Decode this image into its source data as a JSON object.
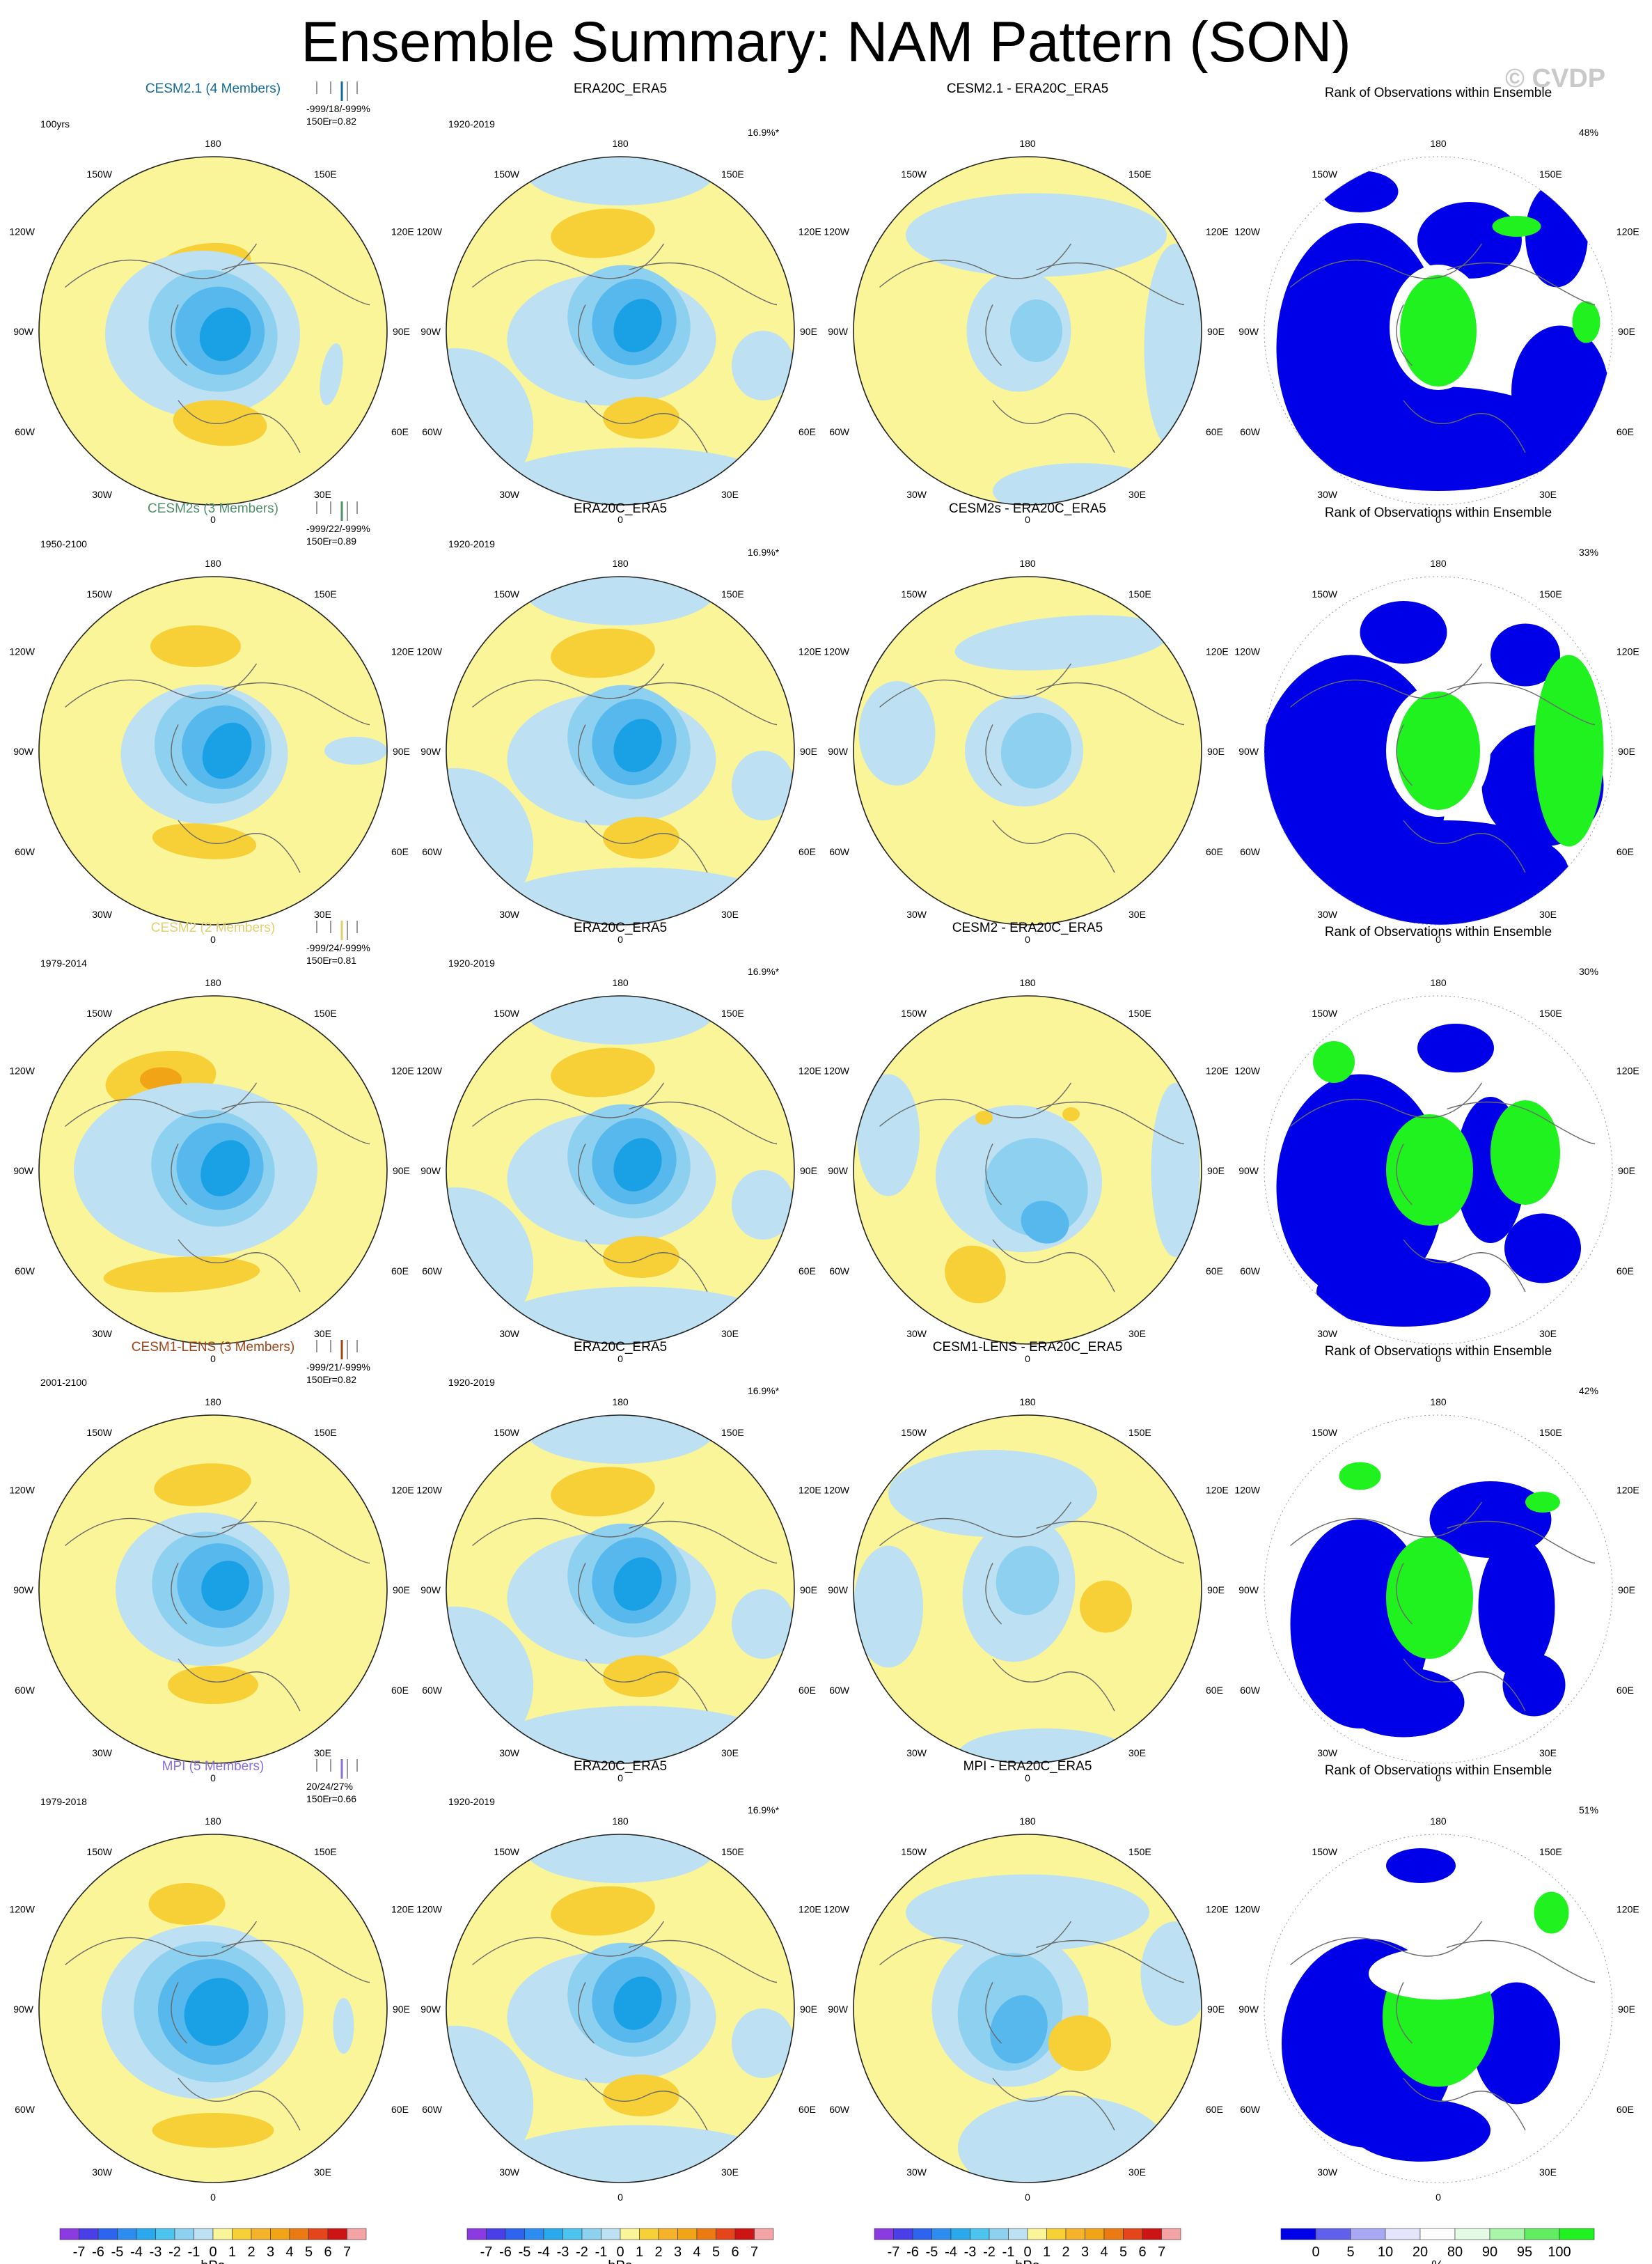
{
  "title": "Ensemble Summary: NAM Pattern (SON)",
  "watermark": "© CVDP",
  "column_labels": {
    "obs": "ERA20C_ERA5",
    "rank": "Rank of Observations within Ensemble"
  },
  "colors": {
    "pos1": "#fbf59a",
    "pos2": "#f7cf37",
    "pos3": "#f1a415",
    "neg1": "#bde0f2",
    "neg2": "#8ed0ef",
    "neg3": "#56b8ec",
    "neg4": "#1aa0e5",
    "rank_low": "#0000e8",
    "rank_high": "#1ff21f",
    "rank_mid": "#ffffff"
  },
  "lon_labels": [
    "180",
    "150W",
    "150E",
    "120W",
    "120E",
    "90W",
    "90E",
    "60W",
    "60E",
    "30W",
    "30E",
    "0"
  ],
  "rows": [
    {
      "model": "CESM2.1 (4 Members)",
      "model_color": "#136a96",
      "period": "100yrs",
      "stats": "-999/18/-999%",
      "stats2": "150E",
      "corr": "r=0.82",
      "diff_title": "CESM2.1 - ERA20C_ERA5",
      "obs_period": "1920-2019",
      "obs_pct": "16.9%*",
      "rank_pct": "48%"
    },
    {
      "model": "CESM2s (3 Members)",
      "model_color": "#4f8f6a",
      "period": "1950-2100",
      "stats": "-999/22/-999%",
      "stats2": "150E",
      "corr": "r=0.89",
      "diff_title": "CESM2s - ERA20C_ERA5",
      "obs_period": "1920-2019",
      "obs_pct": "16.9%*",
      "rank_pct": "33%"
    },
    {
      "model": "CESM2 (2 Members)",
      "model_color": "#e3cf6c",
      "period": "1979-2014",
      "stats": "-999/24/-999%",
      "stats2": "150E",
      "corr": "r=0.81",
      "diff_title": "CESM2 - ERA20C_ERA5",
      "obs_period": "1920-2019",
      "obs_pct": "16.9%*",
      "rank_pct": "30%"
    },
    {
      "model": "CESM1-LENS (3 Members)",
      "model_color": "#a04518",
      "period": "2001-2100",
      "stats": "-999/21/-999%",
      "stats2": "150E",
      "corr": "r=0.82",
      "diff_title": "CESM1-LENS - ERA20C_ERA5",
      "obs_period": "1920-2019",
      "obs_pct": "16.9%*",
      "rank_pct": "42%"
    },
    {
      "model": "MPI (5 Members)",
      "model_color": "#8a6fd4",
      "period": "1979-2018",
      "stats": "20/24/27%",
      "stats2": "150E",
      "corr": "r=0.66",
      "diff_title": "MPI - ERA20C_ERA5",
      "obs_period": "1920-2019",
      "obs_pct": "16.9%*",
      "rank_pct": "51%"
    }
  ],
  "colorbar_hpa": {
    "ticks": [
      "-7",
      "-6",
      "-5",
      "-4",
      "-3",
      "-2",
      "-1",
      "0",
      "1",
      "2",
      "3",
      "4",
      "5",
      "6",
      "7"
    ],
    "unit": "hPa",
    "colors": [
      "#8a3ae0",
      "#4a3ee6",
      "#2d64ee",
      "#2c8cf0",
      "#2aa8ec",
      "#4cc4f0",
      "#8ed0ef",
      "#bde0f2",
      "#fbf59a",
      "#f7cf37",
      "#f5b22a",
      "#f1a415",
      "#ec7a12",
      "#e4451a",
      "#cd1414",
      "#f3a3a3"
    ]
  },
  "colorbar_rank": {
    "ticks": [
      "0",
      "5",
      "10",
      "20",
      "80",
      "90",
      "95",
      "100"
    ],
    "unit": "%",
    "colors": [
      "#0000e8",
      "#6060ee",
      "#a8a8f4",
      "#e4e4fa",
      "#ffffff",
      "#e4fae4",
      "#a8f4a8",
      "#60ee60",
      "#1ff21f"
    ]
  },
  "chart_data": {
    "type": "heatmap",
    "title": "Ensemble Summary: NAM Pattern (SON)",
    "panels_per_row": [
      "model NAM pattern",
      "ERA20C_ERA5",
      "model - ERA20C_ERA5",
      "Rank of Observations within Ensemble"
    ],
    "value_range_hpa": [
      -7,
      7
    ],
    "rank_range_percent": [
      0,
      100
    ],
    "rank_percentages": {
      "CESM2.1 (4 Members)": "48%",
      "CESM2s (3 Members)": "33%",
      "CESM2 (2 Members)": "30%",
      "CESM1-LENS (3 Members)": "42%",
      "MPI (5 Members)": "51%"
    },
    "pattern_correlations": {
      "CESM2.1 (4 Members)": 0.82,
      "CESM2s (3 Members)": 0.89,
      "CESM2 (2 Members)": 0.81,
      "CESM1-LENS (3 Members)": 0.82,
      "MPI (5 Members)": 0.66
    }
  }
}
